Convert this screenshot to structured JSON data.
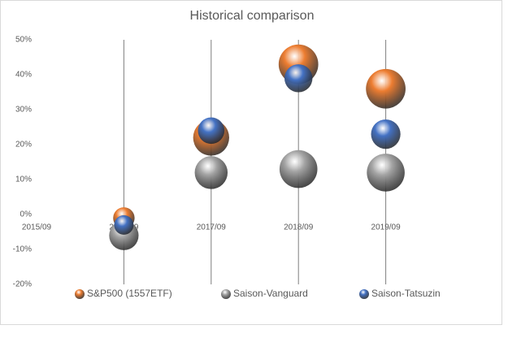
{
  "chart_data": {
    "type": "bubble",
    "title": "Historical comparison",
    "categories": [
      "2015/09",
      "2016/09",
      "2017/09",
      "2018/09",
      "2019/09"
    ],
    "series": [
      {
        "name": "S&P500 (1557ETF)",
        "color": "#ed7d31",
        "values": [
          null,
          -1,
          22,
          43,
          36
        ],
        "sizes": [
          null,
          17,
          48,
          58,
          58
        ]
      },
      {
        "name": "Saison-Vanguard",
        "color": "#a5a5a5",
        "values": [
          null,
          -6,
          12,
          13,
          12
        ],
        "sizes": [
          null,
          32,
          40,
          53,
          53
        ]
      },
      {
        "name": "Saison-Tatsuzin",
        "color": "#4472c4",
        "values": [
          null,
          -3,
          24,
          39,
          23
        ],
        "sizes": [
          null,
          14,
          26,
          29,
          32
        ]
      }
    ],
    "ylim": [
      -20,
      50
    ],
    "yticks": [
      {
        "value": -20,
        "label": "-20%"
      },
      {
        "value": -10,
        "label": "-10%"
      },
      {
        "value": 0,
        "label": "0%"
      },
      {
        "value": 10,
        "label": "10%"
      },
      {
        "value": 20,
        "label": "20%"
      },
      {
        "value": 30,
        "label": "30%"
      },
      {
        "value": 40,
        "label": "40%"
      },
      {
        "value": 50,
        "label": "50%"
      }
    ],
    "grid": "x",
    "legend": "bottom"
  }
}
